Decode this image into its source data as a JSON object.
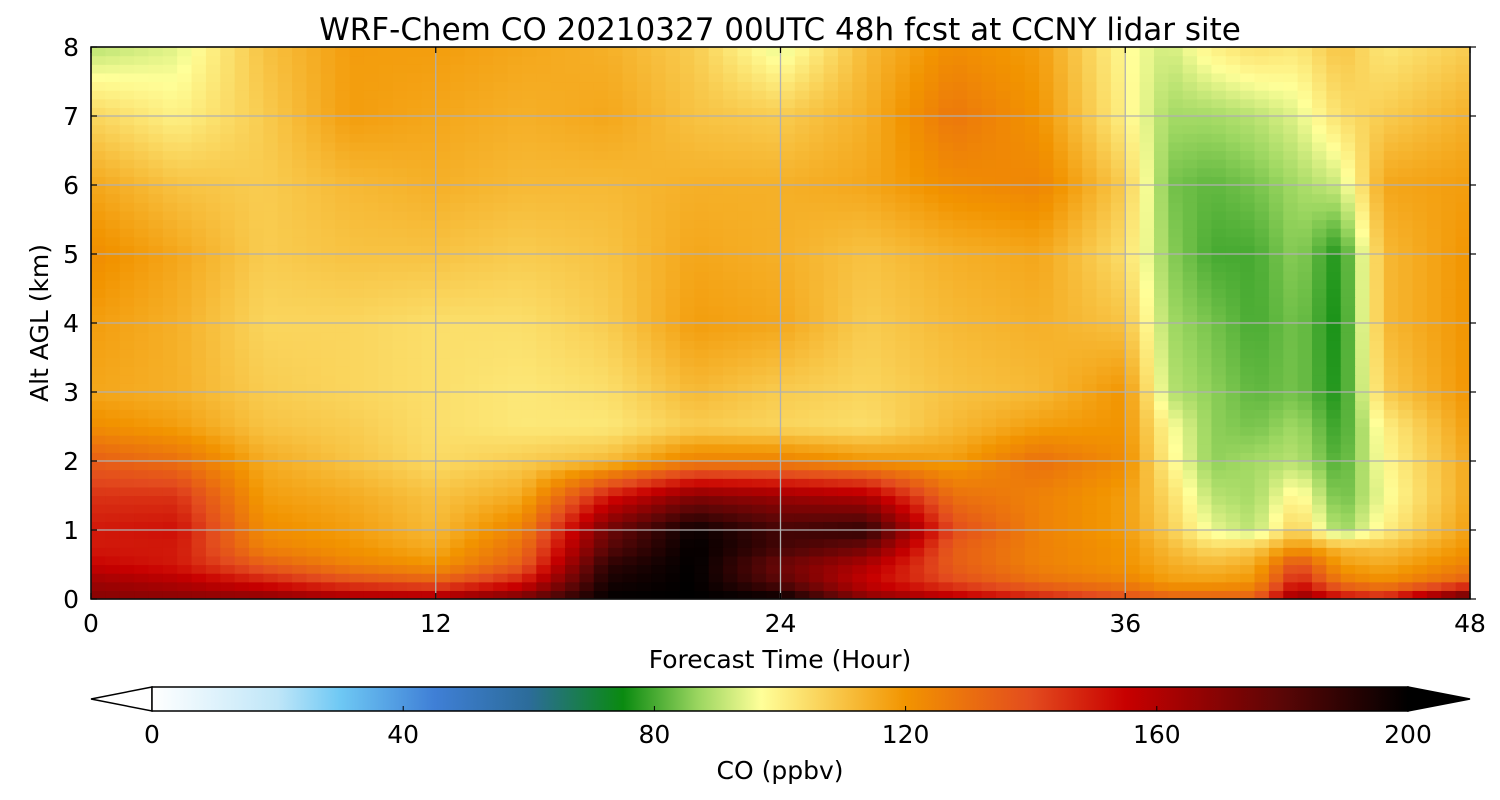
{
  "chart_data": {
    "type": "heatmap",
    "title": "WRF-Chem CO  20210327 00UTC 48h fcst at CCNY lidar site",
    "xlabel": "Forecast Time (Hour)",
    "ylabel": "Alt AGL (km)",
    "xlim": [
      0,
      48
    ],
    "ylim": [
      0,
      8
    ],
    "xticks": [
      "0",
      "12",
      "24",
      "36",
      "48"
    ],
    "yticks": [
      "0",
      "1",
      "2",
      "3",
      "4",
      "5",
      "6",
      "7",
      "8"
    ],
    "grid": true,
    "colorbar": {
      "label": "CO  (ppbv)",
      "range": [
        0,
        200
      ],
      "ticks": [
        "0",
        "40",
        "80",
        "120",
        "160",
        "200"
      ],
      "extend": "both",
      "colors": {
        "0": "#ffffff",
        "20": "#bfe6f8",
        "30": "#6ec8f4",
        "45": "#3f7fd6",
        "60": "#2c6c9a",
        "75": "#0a8a10",
        "87": "#9bd660",
        "97": "#ffff99",
        "120": "#f29400",
        "140": "#e34b1e",
        "155": "#c80000",
        "180": "#5a0606",
        "200": "#000000"
      }
    },
    "x": [
      0,
      3,
      6,
      9,
      12,
      15,
      18,
      21,
      24,
      27,
      30,
      33,
      36,
      37.5,
      39,
      40.5,
      42,
      43.5,
      45,
      48
    ],
    "y": [
      0,
      0.25,
      0.5,
      0.75,
      1,
      1.5,
      2,
      2.5,
      3,
      4,
      5,
      6,
      7,
      8
    ],
    "z": [
      [
        170,
        170,
        170,
        165,
        165,
        175,
        200,
        200,
        200,
        170,
        160,
        150,
        140,
        135,
        135,
        135,
        170,
        155,
        150,
        185
      ],
      [
        165,
        160,
        150,
        140,
        135,
        150,
        195,
        200,
        180,
        155,
        140,
        130,
        125,
        118,
        118,
        120,
        150,
        128,
        122,
        135
      ],
      [
        155,
        150,
        135,
        125,
        120,
        135,
        190,
        200,
        175,
        160,
        135,
        125,
        120,
        115,
        112,
        115,
        140,
        118,
        115,
        125
      ],
      [
        150,
        150,
        125,
        120,
        115,
        130,
        180,
        200,
        185,
        175,
        135,
        125,
        120,
        112,
        105,
        108,
        120,
        112,
        110,
        120
      ],
      [
        150,
        152,
        122,
        118,
        112,
        125,
        175,
        198,
        185,
        190,
        140,
        125,
        118,
        108,
        95,
        90,
        108,
        86,
        100,
        118
      ],
      [
        145,
        145,
        118,
        115,
        110,
        115,
        150,
        170,
        165,
        160,
        130,
        125,
        118,
        105,
        90,
        88,
        100,
        82,
        96,
        116
      ],
      [
        135,
        130,
        115,
        110,
        105,
        108,
        112,
        125,
        125,
        120,
        118,
        130,
        122,
        100,
        86,
        88,
        90,
        80,
        98,
        116
      ],
      [
        122,
        118,
        110,
        108,
        104,
        102,
        102,
        108,
        106,
        104,
        112,
        118,
        120,
        98,
        86,
        84,
        88,
        78,
        100,
        118
      ],
      [
        116,
        114,
        108,
        106,
        104,
        102,
        104,
        112,
        108,
        106,
        110,
        112,
        120,
        90,
        86,
        82,
        84,
        76,
        108,
        120
      ],
      [
        118,
        114,
        106,
        106,
        104,
        104,
        108,
        118,
        116,
        108,
        112,
        114,
        110,
        88,
        84,
        80,
        84,
        75,
        112,
        120
      ],
      [
        122,
        116,
        108,
        110,
        110,
        108,
        110,
        116,
        114,
        110,
        114,
        116,
        104,
        86,
        80,
        80,
        86,
        76,
        112,
        120
      ],
      [
        116,
        110,
        108,
        112,
        114,
        112,
        112,
        114,
        114,
        116,
        122,
        124,
        108,
        84,
        82,
        84,
        88,
        92,
        116,
        118
      ],
      [
        106,
        100,
        108,
        118,
        116,
        114,
        116,
        110,
        108,
        114,
        128,
        120,
        100,
        88,
        88,
        90,
        94,
        104,
        108,
        114
      ],
      [
        90,
        94,
        110,
        118,
        118,
        116,
        114,
        108,
        94,
        112,
        122,
        118,
        98,
        92,
        100,
        104,
        102,
        110,
        102,
        108
      ]
    ]
  }
}
